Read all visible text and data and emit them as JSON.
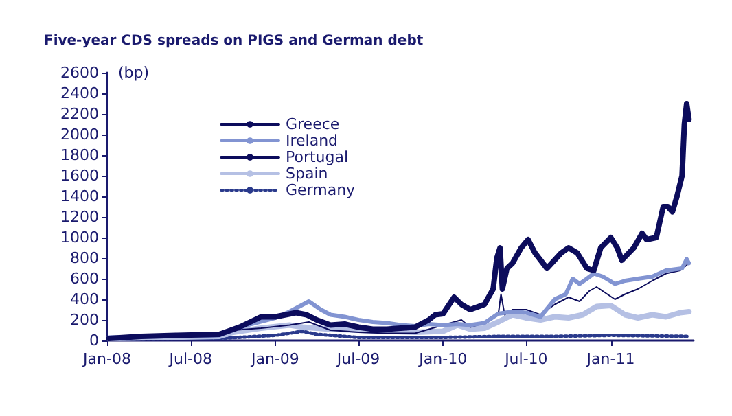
{
  "chart_data": {
    "type": "line",
    "title": "Five-year CDS spreads on PIGS and German debt",
    "ylabel": "(bp)",
    "xlim": [
      "2008-01-01",
      "2011-06-30"
    ],
    "xticks": [
      {
        "value": "2008-01",
        "label": "Jan-08"
      },
      {
        "value": "2008-07",
        "label": "Jul-08"
      },
      {
        "value": "2009-01",
        "label": "Jan-09"
      },
      {
        "value": "2009-07",
        "label": "Jul-09"
      },
      {
        "value": "2010-01",
        "label": "Jan-10"
      },
      {
        "value": "2010-07",
        "label": "Jul-10"
      },
      {
        "value": "2011-01",
        "label": "Jan-11"
      }
    ],
    "ylim": [
      0,
      2600
    ],
    "yticks": [
      0,
      200,
      400,
      600,
      800,
      1000,
      1200,
      1400,
      1600,
      1800,
      2000,
      2200,
      2400,
      2600
    ],
    "grid": false,
    "legend": "top left",
    "marker": "none",
    "series": [
      {
        "name": "Greece",
        "color": "#0c0c5c",
        "line_style": "solid",
        "x": [
          "2008-01-05",
          "2008-03-15",
          "2008-06-01",
          "2008-09-01",
          "2008-10-15",
          "2008-12-01",
          "2009-01-01",
          "2009-02-15",
          "2009-03-10",
          "2009-04-01",
          "2009-05-01",
          "2009-06-01",
          "2009-07-01",
          "2009-08-01",
          "2009-09-01",
          "2009-10-01",
          "2009-11-01",
          "2009-12-01",
          "2009-12-15",
          "2010-01-01",
          "2010-01-25",
          "2010-02-10",
          "2010-03-01",
          "2010-04-01",
          "2010-04-20",
          "2010-04-28",
          "2010-05-05",
          "2010-05-10",
          "2010-05-20",
          "2010-06-01",
          "2010-06-20",
          "2010-07-05",
          "2010-07-20",
          "2010-08-15",
          "2010-09-15",
          "2010-10-01",
          "2010-10-20",
          "2010-11-10",
          "2010-11-25",
          "2010-12-10",
          "2011-01-01",
          "2011-01-15",
          "2011-01-25",
          "2011-02-20",
          "2011-03-10",
          "2011-03-20",
          "2011-04-10",
          "2011-04-25",
          "2011-05-05",
          "2011-05-15",
          "2011-05-25",
          "2011-06-05",
          "2011-06-10",
          "2011-06-15",
          "2011-06-20"
        ],
        "values": [
          20,
          40,
          50,
          60,
          130,
          230,
          230,
          270,
          250,
          200,
          150,
          160,
          130,
          110,
          110,
          120,
          130,
          200,
          250,
          260,
          420,
          350,
          300,
          350,
          500,
          800,
          900,
          500,
          700,
          750,
          900,
          980,
          850,
          700,
          850,
          900,
          850,
          700,
          680,
          900,
          1000,
          900,
          780,
          900,
          1040,
          980,
          1000,
          1300,
          1300,
          1250,
          1400,
          1600,
          2100,
          2300,
          2150
        ]
      },
      {
        "name": "Ireland",
        "color": "#8294d2",
        "line_style": "solid",
        "x": [
          "2008-01-05",
          "2008-09-01",
          "2008-11-01",
          "2009-01-01",
          "2009-02-01",
          "2009-03-15",
          "2009-04-10",
          "2009-05-01",
          "2009-06-01",
          "2009-07-01",
          "2009-08-01",
          "2009-09-01",
          "2009-10-01",
          "2009-11-01",
          "2009-12-01",
          "2010-01-01",
          "2010-02-01",
          "2010-03-01",
          "2010-04-01",
          "2010-05-01",
          "2010-06-01",
          "2010-07-01",
          "2010-08-01",
          "2010-09-01",
          "2010-09-25",
          "2010-10-10",
          "2010-10-25",
          "2010-11-10",
          "2010-11-25",
          "2010-12-15",
          "2011-01-10",
          "2011-02-01",
          "2011-03-01",
          "2011-04-01",
          "2011-05-01",
          "2011-06-05",
          "2011-06-15",
          "2011-06-20"
        ],
        "values": [
          30,
          50,
          150,
          220,
          280,
          380,
          300,
          250,
          230,
          200,
          180,
          170,
          150,
          140,
          160,
          150,
          160,
          150,
          170,
          260,
          280,
          270,
          230,
          400,
          450,
          600,
          550,
          600,
          650,
          620,
          550,
          580,
          600,
          620,
          680,
          700,
          790,
          750
        ]
      },
      {
        "name": "Portugal",
        "color": "#0c0c5c",
        "line_style": "solid",
        "x": [
          "2008-01-05",
          "2008-09-01",
          "2008-10-01",
          "2008-12-01",
          "2009-02-01",
          "2009-03-15",
          "2009-05-01",
          "2009-07-01",
          "2009-09-01",
          "2009-11-01",
          "2010-01-01",
          "2010-02-10",
          "2010-03-01",
          "2010-04-01",
          "2010-05-01",
          "2010-05-07",
          "2010-05-15",
          "2010-06-01",
          "2010-07-01",
          "2010-08-01",
          "2010-09-01",
          "2010-10-01",
          "2010-10-25",
          "2010-11-15",
          "2010-12-01",
          "2011-01-10",
          "2011-02-01",
          "2011-03-01",
          "2011-04-01",
          "2011-05-01",
          "2011-06-01",
          "2011-06-20"
        ],
        "values": [
          20,
          40,
          100,
          120,
          150,
          180,
          100,
          80,
          70,
          70,
          150,
          200,
          130,
          170,
          250,
          450,
          250,
          300,
          300,
          250,
          350,
          420,
          380,
          480,
          520,
          400,
          450,
          500,
          580,
          650,
          680,
          750
        ]
      },
      {
        "name": "Spain",
        "color": "#b5c0e4",
        "line_style": "solid",
        "x": [
          "2008-01-05",
          "2008-09-01",
          "2008-10-01",
          "2008-12-01",
          "2009-02-01",
          "2009-03-01",
          "2009-05-01",
          "2009-07-01",
          "2009-09-01",
          "2009-11-01",
          "2010-01-01",
          "2010-02-01",
          "2010-03-01",
          "2010-04-01",
          "2010-05-01",
          "2010-06-01",
          "2010-07-01",
          "2010-08-01",
          "2010-09-01",
          "2010-10-01",
          "2010-11-01",
          "2010-12-01",
          "2011-01-01",
          "2011-02-01",
          "2011-03-01",
          "2011-04-01",
          "2011-05-01",
          "2011-06-01",
          "2011-06-20"
        ],
        "values": [
          20,
          40,
          80,
          120,
          150,
          130,
          110,
          100,
          90,
          80,
          90,
          150,
          110,
          120,
          180,
          250,
          220,
          200,
          230,
          220,
          250,
          330,
          340,
          250,
          220,
          250,
          230,
          270,
          280
        ]
      },
      {
        "name": "Germany",
        "color": "#2a3a8c",
        "line_style": "dotted",
        "x": [
          "2008-01-05",
          "2008-09-01",
          "2009-01-01",
          "2009-03-01",
          "2009-04-01",
          "2009-07-01",
          "2010-01-01",
          "2010-05-01",
          "2010-09-01",
          "2011-01-01",
          "2011-06-20"
        ],
        "values": [
          10,
          20,
          50,
          90,
          60,
          30,
          30,
          40,
          40,
          50,
          40
        ]
      }
    ]
  }
}
